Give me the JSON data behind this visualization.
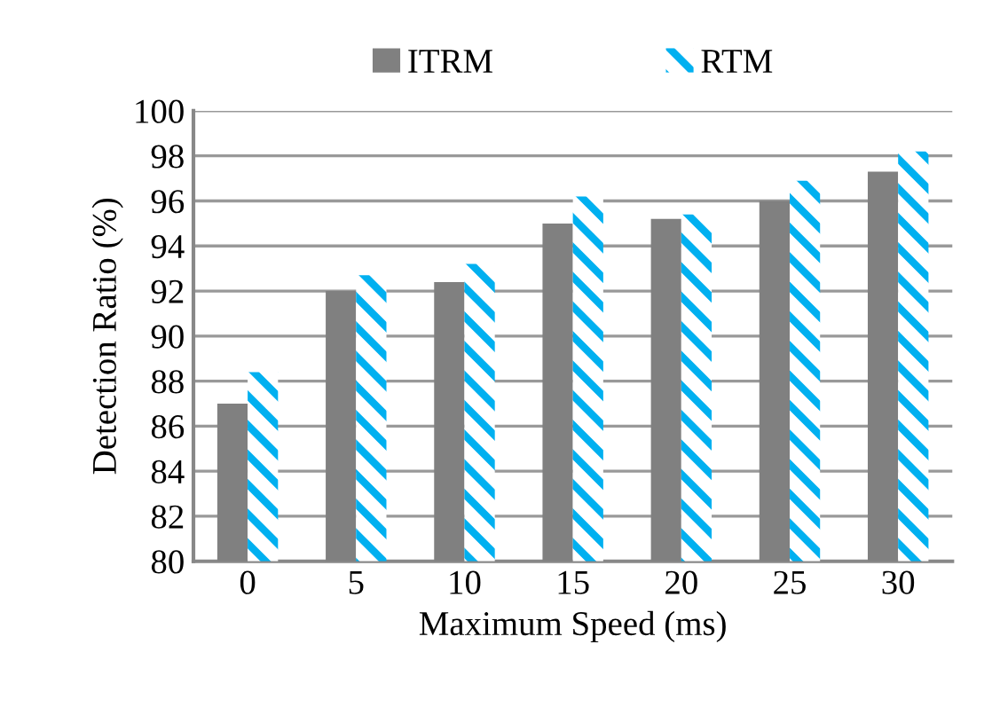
{
  "chart_data": {
    "type": "bar",
    "xlabel": "Maximum Speed (ms)",
    "ylabel": "Detection Ratio (%)",
    "categories": [
      "0",
      "5",
      "10",
      "15",
      "20",
      "25",
      "30"
    ],
    "series": [
      {
        "name": "ITRM",
        "color": "#808080",
        "values": [
          87,
          92,
          92.4,
          95,
          95.2,
          96,
          97.3
        ]
      },
      {
        "name": "RTM",
        "color": "#00b0f0",
        "values": [
          88.4,
          92.7,
          93.2,
          96.2,
          95.4,
          96.9,
          98.2
        ]
      }
    ],
    "ylim": [
      80,
      100
    ],
    "yticks": [
      80,
      82,
      84,
      86,
      88,
      90,
      92,
      94,
      96,
      98,
      100
    ],
    "grid": "y",
    "legend": "top"
  }
}
